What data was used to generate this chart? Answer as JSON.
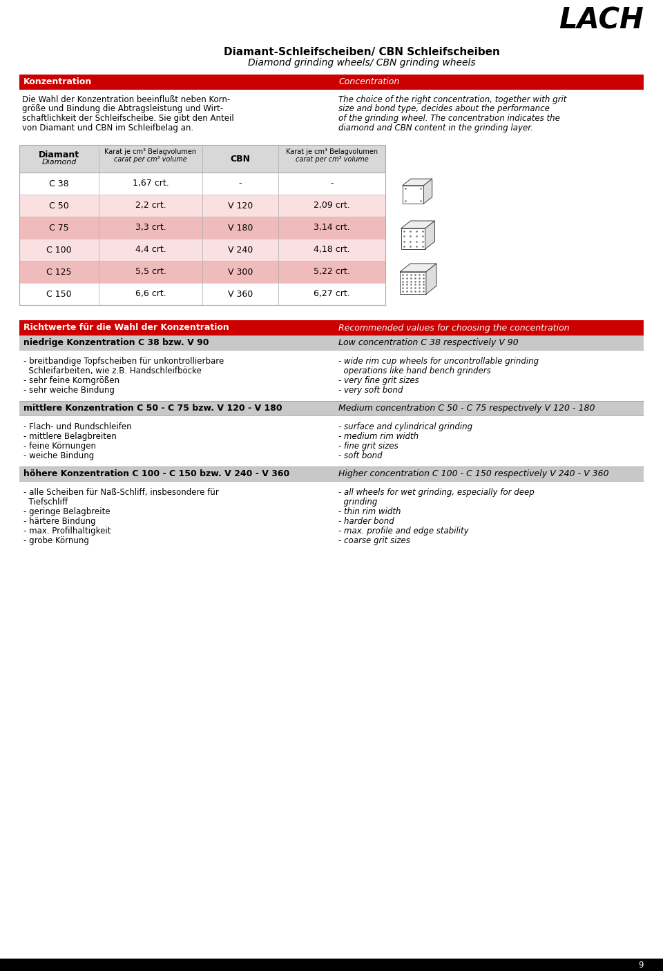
{
  "title_main": "Diamant-Schleifscheiben/ CBN Schleifscheiben",
  "title_sub": "Diamond grinding wheels/ CBN grinding wheels",
  "logo_text": "LACH",
  "red_color": "#CC0000",
  "light_pink_bg": "#F9E0E0",
  "mid_pink_bg": "#F0BBBB",
  "header_bg": "#D8D8D8",
  "section_bg": "#C8C8C8",
  "white": "#FFFFFF",
  "black": "#000000",
  "konzentration_de": "Konzentration",
  "konzentration_en": "Concentration",
  "desc_de_lines": [
    "Die Wahl der Konzentration beeinflußt neben Korn-",
    "größe und Bindung die Abtragsleistung und Wirt-",
    "schaftlichkeit der Schleifscheibe. Sie gibt den Anteil",
    "von Diamant und CBN im Schleifbelag an."
  ],
  "desc_en_lines": [
    "The choice of the right concentration, together with grit",
    "size and bond type, decides about the performance",
    "of the grinding wheel. The concentration indicates the",
    "diamond and CBN content in the grinding layer."
  ],
  "table_rows": [
    [
      "C 38",
      "1,67 crt.",
      "-",
      "-",
      "white"
    ],
    [
      "C 50",
      "2,2 crt.",
      "V 120",
      "2,09 crt.",
      "light"
    ],
    [
      "C 75",
      "3,3 crt.",
      "V 180",
      "3,14 crt.",
      "mid"
    ],
    [
      "C 100",
      "4,4 crt.",
      "V 240",
      "4,18 crt.",
      "light"
    ],
    [
      "C 125",
      "5,5 crt.",
      "V 300",
      "5,22 crt.",
      "mid"
    ],
    [
      "C 150",
      "6,6 crt.",
      "V 360",
      "6,27 crt.",
      "white"
    ]
  ],
  "richtwerte_de": "Richtwerte für die Wahl der Konzentration",
  "richtwerte_en": "Recommended values for choosing the concentration",
  "niedrige_de": "niedrige Konzentration C 38 bzw. V 90",
  "niedrige_en": "Low concentration C 38 respectively V 90",
  "niedrige_de_items": [
    "- breitbandige Topfscheiben für unkontrollierbare",
    "  Schleifarbeiten, wie z.B. Handschleifböcke",
    "- sehr feine Korngrößen",
    "- sehr weiche Bindung"
  ],
  "niedrige_en_items": [
    "- wide rim cup wheels for uncontrollable grinding",
    "  operations like hand bench grinders",
    "- very fine grit sizes",
    "- very soft bond"
  ],
  "mittlere_de": "mittlere Konzentration C 50 - C 75 bzw. V 120 - V 180",
  "mittlere_en": "Medium concentration C 50 - C 75 respectively V 120 - 180",
  "mittlere_de_items": [
    "- Flach- und Rundschleifen",
    "- mittlere Belagbreiten",
    "- feine Körnungen",
    "- weiche Bindung"
  ],
  "mittlere_en_items": [
    "- surface and cylindrical grinding",
    "- medium rim width",
    "- fine grit sizes",
    "- soft bond"
  ],
  "hoehere_de": "höhere Konzentration C 100 - C 150 bzw. V 240 - V 360",
  "hoehere_en": "Higher concentration C 100 - C 150 respectively V 240 - V 360",
  "hoehere_de_items": [
    "- alle Scheiben für Naß-Schliff, insbesondere für",
    "  Tiefschliff",
    "- geringe Belagbreite",
    "- härtere Bindung",
    "- max. Profilhaltigkeit",
    "- grobe Körnung"
  ],
  "hoehere_en_items": [
    "- all wheels for wet grinding, especially for deep",
    "  grinding",
    "- thin rim width",
    "- harder bond",
    "- max. profile and edge stability",
    "- coarse grit sizes"
  ],
  "page_number": "9"
}
